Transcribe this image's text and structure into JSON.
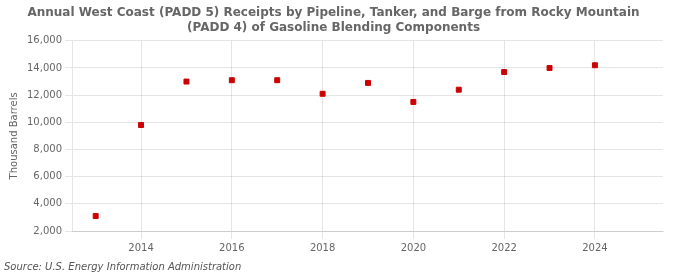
{
  "chart_data": {
    "type": "scatter",
    "title": "Annual West Coast (PADD 5) Receipts by Pipeline, Tanker, and Barge from Rocky Mountain\n(PADD 4) of Gasoline Blending Components",
    "ylabel": "Thousand Barrels",
    "source": "Source: U.S. Energy Information Administration",
    "x": [
      2013,
      2014,
      2015,
      2016,
      2017,
      2018,
      2019,
      2020,
      2021,
      2022,
      2023,
      2024
    ],
    "values": [
      3100,
      9800,
      13000,
      13100,
      13100,
      12100,
      12900,
      11500,
      12400,
      13700,
      14000,
      14200
    ],
    "color": "#cc0000",
    "marker": "square",
    "xlim": [
      2012.5,
      2025.5
    ],
    "xticks": [
      2014,
      2016,
      2018,
      2020,
      2022,
      2024
    ],
    "ylim": [
      2000,
      16000
    ],
    "yticks": [
      {
        "value": 2000,
        "label": "2,000"
      },
      {
        "value": 4000,
        "label": "4,000"
      },
      {
        "value": 6000,
        "label": "6,000"
      },
      {
        "value": 8000,
        "label": "8,000"
      },
      {
        "value": 10000,
        "label": "10,000"
      },
      {
        "value": 12000,
        "label": "12,000"
      },
      {
        "value": 14000,
        "label": "14,000"
      },
      {
        "value": 16000,
        "label": "16,000"
      }
    ],
    "grid": true
  }
}
